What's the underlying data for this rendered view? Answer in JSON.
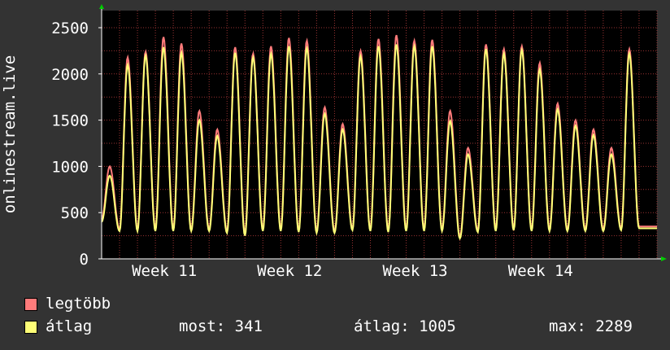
{
  "chart_data": {
    "type": "line",
    "ylabel": "onlinestream.live",
    "ylim": [
      0,
      2500
    ],
    "yticks": [
      0,
      500,
      1000,
      1500,
      2000,
      2500
    ],
    "xtick_labels": [
      "Week 11",
      "Week 12",
      "Week 13",
      "Week 14"
    ],
    "grid": true,
    "colors": {
      "max": "#ff7b7b",
      "avg": "#ffff77",
      "grid": "#993333",
      "plot_bg": "#000000"
    },
    "days": 31,
    "series": [
      {
        "name": "legtöbb",
        "peaks": [
          1000,
          2180,
          2240,
          2400,
          2330,
          1600,
          1400,
          2290,
          2220,
          2300,
          2390,
          2360,
          1640,
          1460,
          2250,
          2380,
          2420,
          2360,
          2370,
          1600,
          1200,
          2320,
          2270,
          2300,
          2120,
          1680,
          1500,
          1400,
          1200,
          2270
        ],
        "troughs": [
          430,
          320,
          320,
          320,
          320,
          320,
          320,
          300,
          280,
          320,
          320,
          310,
          300,
          300,
          330,
          320,
          310,
          320,
          320,
          320,
          240,
          310,
          320,
          330,
          320,
          320,
          320,
          320,
          320,
          330,
          350
        ]
      },
      {
        "name": "átlag",
        "peaks": [
          900,
          2100,
          2200,
          2290,
          2230,
          1500,
          1330,
          2230,
          2180,
          2220,
          2300,
          2280,
          1570,
          1400,
          2190,
          2300,
          2320,
          2300,
          2300,
          1490,
          1130,
          2270,
          2220,
          2260,
          2050,
          1620,
          1440,
          1340,
          1130,
          2220
        ],
        "troughs": [
          400,
          300,
          300,
          300,
          300,
          300,
          300,
          280,
          250,
          300,
          300,
          290,
          280,
          280,
          310,
          300,
          290,
          300,
          300,
          300,
          220,
          290,
          300,
          310,
          300,
          300,
          300,
          300,
          300,
          310,
          330
        ]
      }
    ]
  },
  "legend": [
    {
      "label": "legtöbb",
      "color": "#ff7b7b"
    },
    {
      "label": "átlag",
      "color": "#ffff77"
    }
  ],
  "stats": {
    "current": "most: 341",
    "average": "átlag: 1005",
    "max": "max: 2289"
  }
}
